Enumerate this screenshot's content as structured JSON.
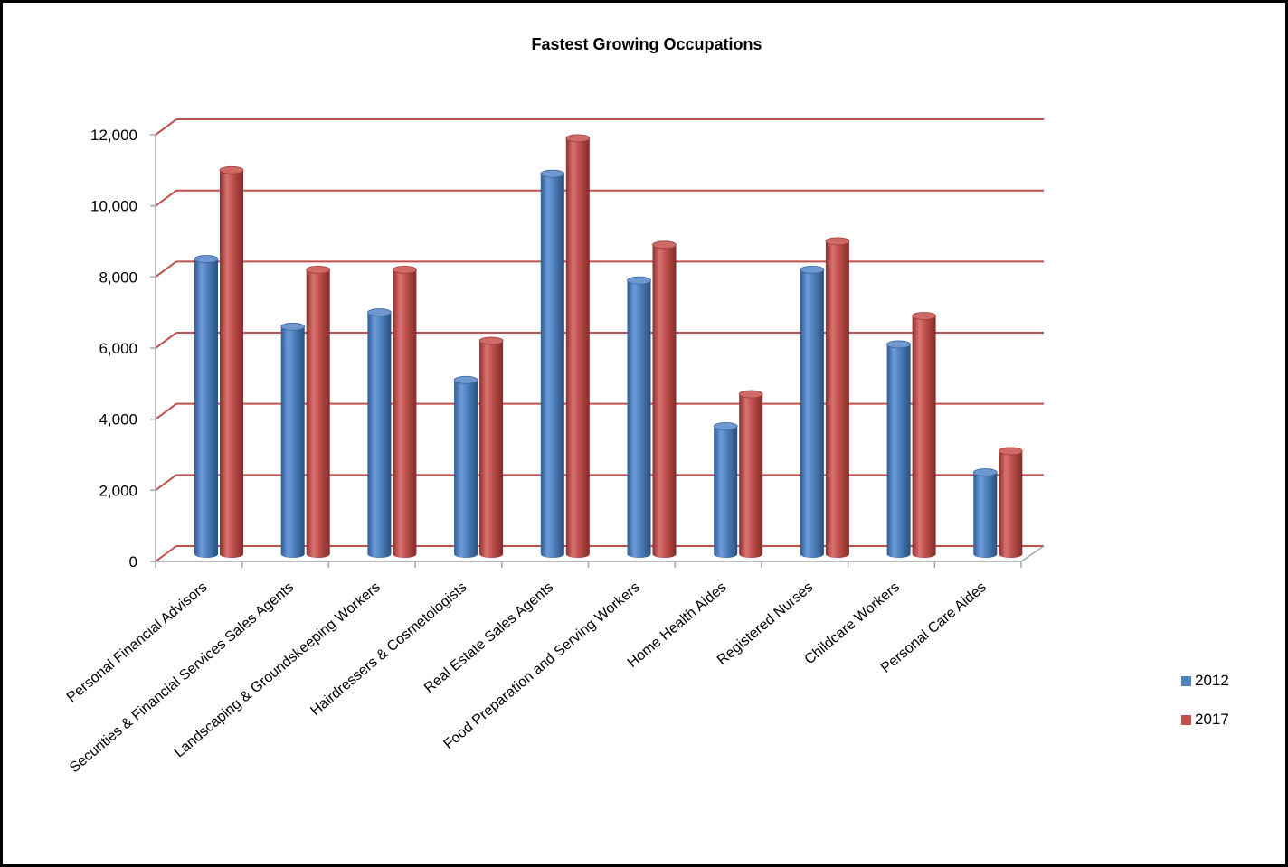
{
  "chart_data": {
    "type": "bar",
    "title": "Fastest Growing Occupations",
    "xlabel": "",
    "ylabel": "",
    "ylim": [
      0,
      12000
    ],
    "yticks": [
      "0",
      "2,000",
      "4,000",
      "6,000",
      "8,000",
      "10,000",
      "12,000"
    ],
    "grid": true,
    "legend_position": "right",
    "categories": [
      "Personal Financial Advisors",
      "Securities & Financial Services Sales Agents",
      "Landscaping & Groundskeeping Workers",
      "Hairdressers & Cosmetologists",
      "Real Estate Sales Agents",
      "Food Preparation and Serving Workers",
      "Home Health Aides",
      "Registered Nurses",
      "Childcare Workers",
      "Personal Care Aides"
    ],
    "series": [
      {
        "name": "2012",
        "color": "#4F81BD",
        "values": [
          8300,
          6400,
          6800,
          4900,
          10700,
          7700,
          3600,
          8000,
          5900,
          2300
        ]
      },
      {
        "name": "2017",
        "color": "#C0504D",
        "values": [
          10800,
          8000,
          8000,
          6000,
          11700,
          8700,
          4500,
          8800,
          6700,
          2900
        ]
      }
    ],
    "gridline_color": "#C0504D"
  }
}
